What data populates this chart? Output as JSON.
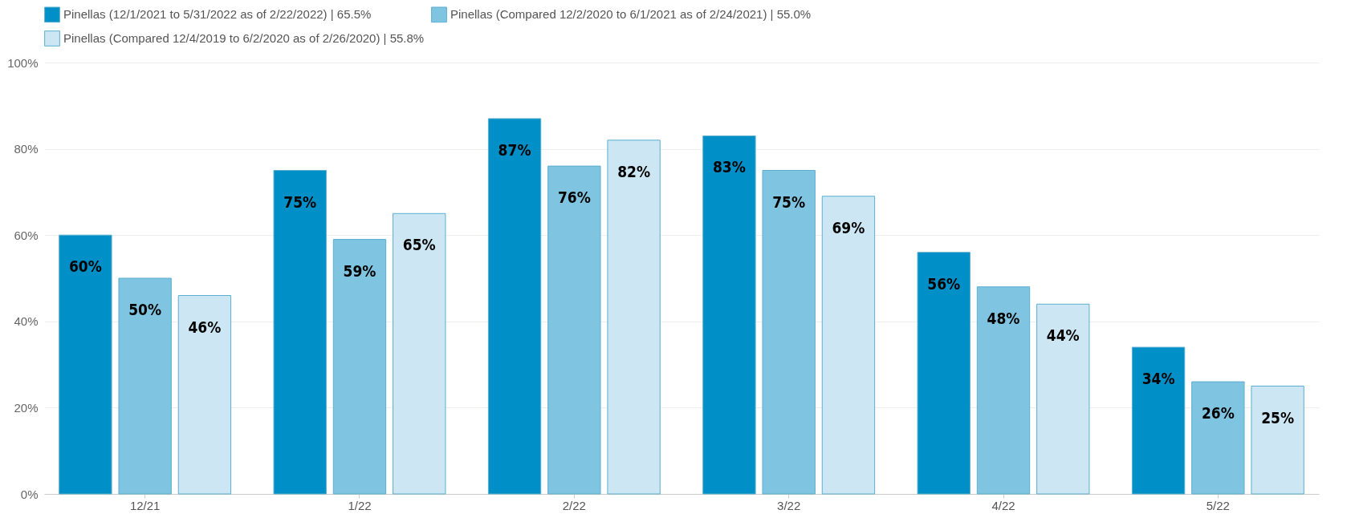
{
  "chart_data": {
    "type": "bar",
    "categories": [
      "12/21",
      "1/22",
      "2/22",
      "3/22",
      "4/22",
      "5/22"
    ],
    "series": [
      {
        "name": "Pinellas (12/1/2021 to 5/31/2022 as of 2/22/2022) | 65.5%",
        "color": "#008fc6",
        "values": [
          60,
          75,
          87,
          83,
          56,
          34
        ],
        "value_labels": [
          "60%",
          "75%",
          "87%",
          "83%",
          "56%",
          "34%"
        ]
      },
      {
        "name": "Pinellas (Compared 12/2/2020 to 6/1/2021 as of 2/24/2021) | 55.0%",
        "color": "#7fc4e0",
        "values": [
          50,
          59,
          76,
          75,
          48,
          26
        ],
        "value_labels": [
          "50%",
          "59%",
          "76%",
          "75%",
          "48%",
          "26%"
        ]
      },
      {
        "name": "Pinellas (Compared 12/4/2019 to 6/2/2020 as of 2/26/2020) | 55.8%",
        "color": "#cce7f3",
        "values": [
          46,
          65,
          82,
          69,
          44,
          25
        ],
        "value_labels": [
          "46%",
          "65%",
          "82%",
          "69%",
          "44%",
          "25%"
        ]
      }
    ],
    "ylim": [
      0,
      100
    ],
    "yticks": [
      {
        "value": 0,
        "label": "0%"
      },
      {
        "value": 20,
        "label": "20%"
      },
      {
        "value": 40,
        "label": "40%"
      },
      {
        "value": 60,
        "label": "60%"
      },
      {
        "value": 80,
        "label": "80%"
      },
      {
        "value": 100,
        "label": "100%"
      }
    ],
    "grid": "y",
    "legend": "top"
  }
}
